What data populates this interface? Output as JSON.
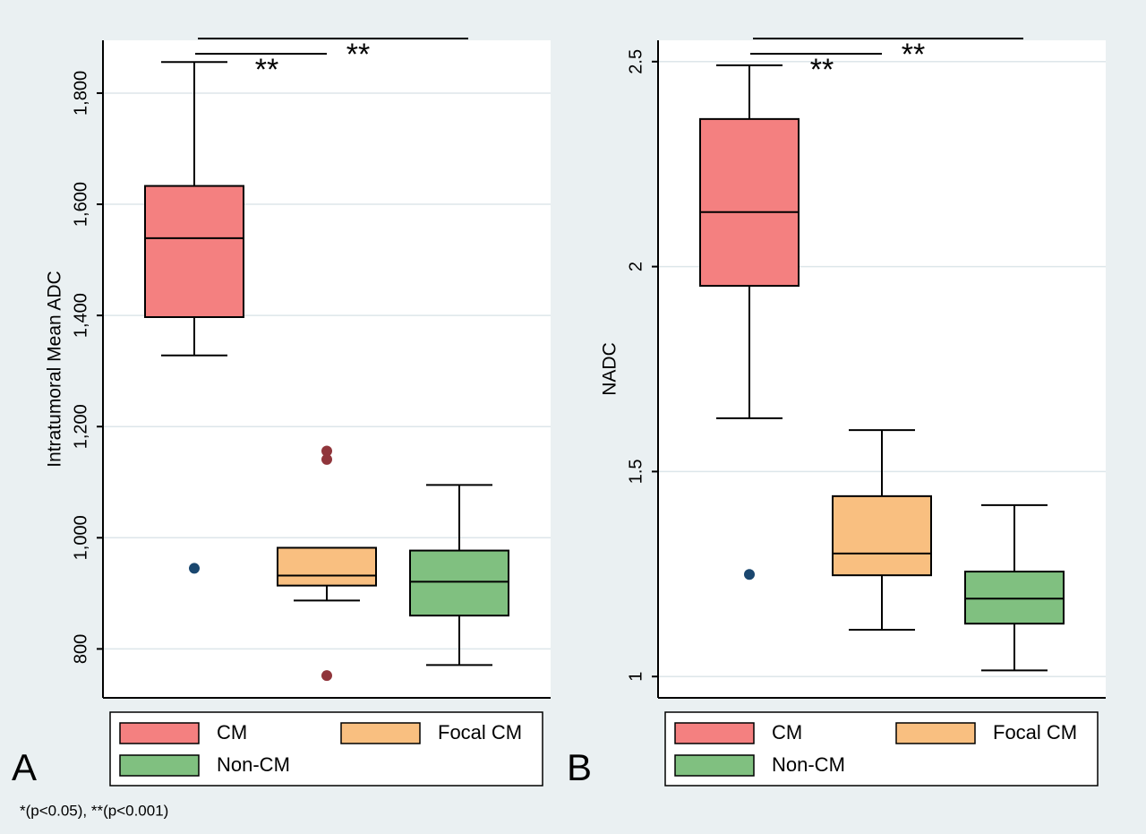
{
  "chart_data": [
    {
      "type": "box",
      "panel_label": "A",
      "ylabel": "Intratumoral Mean ADC",
      "ylim": [
        712,
        1895
      ],
      "yticks": [
        800,
        {
          "value": 1000,
          "label": "1,000"
        },
        {
          "value": 1200,
          "label": "1,200"
        },
        {
          "value": 1400,
          "label": "1,400"
        },
        {
          "value": 1600,
          "label": "1,600"
        },
        {
          "value": 1800,
          "label": "1,800"
        }
      ],
      "grid": true,
      "boxes": [
        {
          "name": "CM",
          "color": "#f48080",
          "min": 1328,
          "q1": 1397,
          "median": 1539,
          "q3": 1633,
          "max": 1856,
          "outliers": [
            945
          ],
          "outlier_color": "#1a476f"
        },
        {
          "name": "Focal CM",
          "color": "#f9bf80",
          "min": 887,
          "q1": 914,
          "median": 932,
          "q3": 982,
          "max": 982,
          "outliers": [
            1156,
            1141,
            752
          ],
          "outlier_color": "#90353b"
        },
        {
          "name": "Non-CM",
          "color": "#80c080",
          "min": 771,
          "q1": 860,
          "median": 921,
          "q3": 977,
          "max": 1095,
          "outliers": []
        }
      ],
      "annotations": [
        "**",
        "**"
      ]
    },
    {
      "type": "box",
      "panel_label": "B",
      "ylabel": "NADC",
      "ylim": [
        0.948,
        2.552
      ],
      "yticks": [
        1,
        1.5,
        2,
        2.5
      ],
      "grid": true,
      "boxes": [
        {
          "name": "CM",
          "color": "#f48080",
          "min": 1.63,
          "q1": 1.953,
          "median": 2.133,
          "q3": 2.36,
          "max": 2.491,
          "outliers": [
            1.249
          ],
          "outlier_color": "#1a476f"
        },
        {
          "name": "Focal CM",
          "color": "#f9bf80",
          "min": 1.114,
          "q1": 1.247,
          "median": 1.3,
          "q3": 1.44,
          "max": 1.601,
          "outliers": []
        },
        {
          "name": "Non-CM",
          "color": "#80c080",
          "min": 1.015,
          "q1": 1.129,
          "median": 1.19,
          "q3": 1.256,
          "max": 1.418,
          "outliers": []
        }
      ],
      "annotations": [
        "**",
        "**"
      ]
    }
  ],
  "footnote": "*(p<0.05), **(p<0.001)"
}
